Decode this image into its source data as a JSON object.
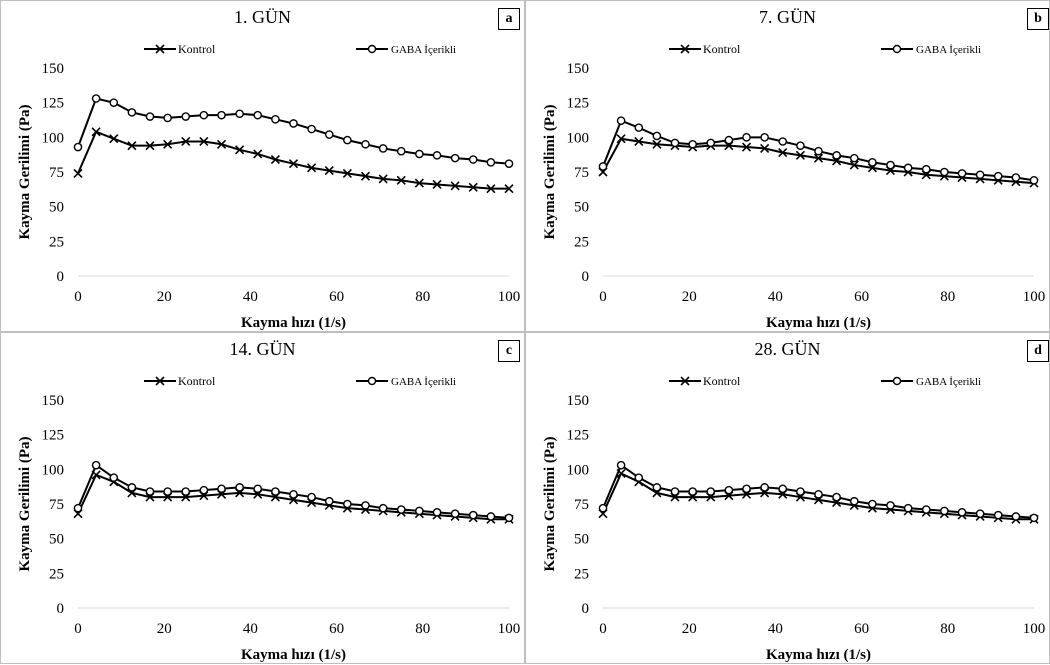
{
  "charts": [
    {
      "panel_title": "1. GÜN",
      "panel_letter": "a",
      "chart_data": {
        "type": "line",
        "title": "1. GÜN",
        "xlabel": "Kayma hızı (1/s)",
        "ylabel": "Kayma Gerilimi (Pa)",
        "xlim": [
          0,
          100
        ],
        "ylim": [
          0,
          150
        ],
        "xticks": [
          0,
          20,
          40,
          60,
          80,
          100
        ],
        "yticks": [
          0,
          25,
          50,
          75,
          100,
          125,
          150
        ],
        "grid": false,
        "legend_position": "top",
        "x": [
          0,
          4.2,
          8.3,
          12.5,
          16.7,
          20.8,
          25,
          29.2,
          33.3,
          37.5,
          41.7,
          45.8,
          50,
          54.2,
          58.3,
          62.5,
          66.7,
          70.8,
          75,
          79.2,
          83.3,
          87.5,
          91.7,
          95.8,
          100
        ],
        "series": [
          {
            "name": "Kontrol",
            "marker": "x",
            "values": [
              74,
              104,
              99,
              94,
              94,
              95,
              97,
              97,
              95,
              91,
              88,
              84,
              81,
              78,
              76,
              74,
              72,
              70,
              69,
              67,
              66,
              65,
              64,
              63,
              63
            ]
          },
          {
            "name": "GABA İçerikli",
            "marker": "circle",
            "values": [
              93,
              128,
              125,
              118,
              115,
              114,
              115,
              116,
              116,
              117,
              116,
              113,
              110,
              106,
              102,
              98,
              95,
              92,
              90,
              88,
              87,
              85,
              84,
              82,
              81
            ]
          }
        ]
      }
    },
    {
      "panel_title": "7. GÜN",
      "panel_letter": "b",
      "chart_data": {
        "type": "line",
        "title": "7. GÜN",
        "xlabel": "Kayma hızı (1/s)",
        "ylabel": "Kayma Gerilimi (Pa)",
        "xlim": [
          0,
          100
        ],
        "ylim": [
          0,
          150
        ],
        "xticks": [
          0,
          20,
          40,
          60,
          80,
          100
        ],
        "yticks": [
          0,
          25,
          50,
          75,
          100,
          125,
          150
        ],
        "grid": false,
        "legend_position": "top",
        "x": [
          0,
          4.2,
          8.3,
          12.5,
          16.7,
          20.8,
          25,
          29.2,
          33.3,
          37.5,
          41.7,
          45.8,
          50,
          54.2,
          58.3,
          62.5,
          66.7,
          70.8,
          75,
          79.2,
          83.3,
          87.5,
          91.7,
          95.8,
          100
        ],
        "series": [
          {
            "name": "Kontrol",
            "marker": "x",
            "values": [
              75,
              99,
              97,
              95,
              94,
              93,
              94,
              94,
              93,
              92,
              89,
              87,
              85,
              83,
              80,
              78,
              76,
              75,
              73,
              72,
              71,
              70,
              69,
              68,
              67
            ]
          },
          {
            "name": "GABA İçerikli",
            "marker": "circle",
            "values": [
              79,
              112,
              107,
              101,
              96,
              95,
              96,
              98,
              100,
              100,
              97,
              94,
              90,
              87,
              85,
              82,
              80,
              78,
              77,
              75,
              74,
              73,
              72,
              71,
              69
            ]
          }
        ]
      }
    },
    {
      "panel_title": "14. GÜN",
      "panel_letter": "c",
      "chart_data": {
        "type": "line",
        "title": "14. GÜN",
        "xlabel": "Kayma hızı (1/s)",
        "ylabel": "Kayma Gerilimi (Pa)",
        "xlim": [
          0,
          100
        ],
        "ylim": [
          0,
          150
        ],
        "xticks": [
          0,
          20,
          40,
          60,
          80,
          100
        ],
        "yticks": [
          0,
          25,
          50,
          75,
          100,
          125,
          150
        ],
        "grid": false,
        "legend_position": "top",
        "x": [
          0,
          4.2,
          8.3,
          12.5,
          16.7,
          20.8,
          25,
          29.2,
          33.3,
          37.5,
          41.7,
          45.8,
          50,
          54.2,
          58.3,
          62.5,
          66.7,
          70.8,
          75,
          79.2,
          83.3,
          87.5,
          91.7,
          95.8,
          100
        ],
        "series": [
          {
            "name": "Kontrol",
            "marker": "x",
            "values": [
              68,
              96,
              91,
              83,
              80,
              80,
              80,
              81,
              82,
              83,
              82,
              80,
              78,
              76,
              74,
              72,
              71,
              70,
              69,
              68,
              67,
              66,
              65,
              64,
              64
            ]
          },
          {
            "name": "GABA İçerikli",
            "marker": "circle",
            "values": [
              72,
              103,
              94,
              87,
              84,
              84,
              84,
              85,
              86,
              87,
              86,
              84,
              82,
              80,
              77,
              75,
              74,
              72,
              71,
              70,
              69,
              68,
              67,
              66,
              65
            ]
          }
        ]
      }
    },
    {
      "panel_title": "28. GÜN",
      "panel_letter": "d",
      "chart_data": {
        "type": "line",
        "title": "28. GÜN",
        "xlabel": "Kayma hızı (1/s)",
        "ylabel": "Kayma Gerilimi (Pa)",
        "xlim": [
          0,
          100
        ],
        "ylim": [
          0,
          150
        ],
        "xticks": [
          0,
          20,
          40,
          60,
          80,
          100
        ],
        "yticks": [
          0,
          25,
          50,
          75,
          100,
          125,
          150
        ],
        "grid": false,
        "legend_position": "top",
        "x": [
          0,
          4.2,
          8.3,
          12.5,
          16.7,
          20.8,
          25,
          29.2,
          33.3,
          37.5,
          41.7,
          45.8,
          50,
          54.2,
          58.3,
          62.5,
          66.7,
          70.8,
          75,
          79.2,
          83.3,
          87.5,
          91.7,
          95.8,
          100
        ],
        "series": [
          {
            "name": "Kontrol",
            "marker": "x",
            "values": [
              68,
              97,
              91,
              83,
              80,
              80,
              80,
              81,
              82,
              83,
              82,
              80,
              78,
              76,
              74,
              72,
              71,
              70,
              69,
              68,
              67,
              66,
              65,
              64,
              64
            ]
          },
          {
            "name": "GABA İçerikli",
            "marker": "circle",
            "values": [
              72,
              103,
              94,
              87,
              84,
              84,
              84,
              85,
              86,
              87,
              86,
              84,
              82,
              80,
              77,
              75,
              74,
              72,
              71,
              70,
              69,
              68,
              67,
              66,
              65
            ]
          }
        ]
      }
    }
  ]
}
